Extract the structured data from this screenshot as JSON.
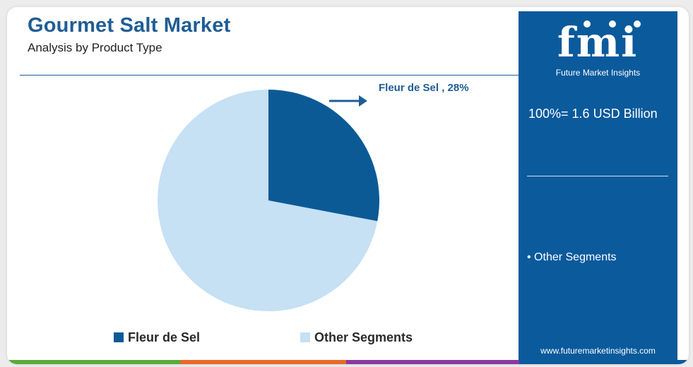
{
  "header": {
    "title": "Gourmet Salt Market",
    "subtitle": "Analysis by Product Type"
  },
  "chart_data": {
    "type": "pie",
    "title": "Gourmet Salt Market",
    "subtitle": "Analysis by Product Type",
    "categories": [
      "Fleur de Sel",
      "Other Segments"
    ],
    "values": [
      28,
      72
    ],
    "unit": "%",
    "callout": "Fleur de Sel , 28%",
    "colors": [
      "#0b5a96",
      "#c6e0f4"
    ],
    "legend_placement": "bottom"
  },
  "legend": {
    "items": [
      {
        "label": "Fleur de Sel",
        "color": "#0b5a96"
      },
      {
        "label": "Other Segments",
        "color": "#c6e0f4"
      }
    ]
  },
  "side_panel": {
    "logo_text": "fmi",
    "logo_subtitle": "Future Market Insights",
    "total_label": "100%= 1.6 USD Billion",
    "segment_label": "• Other Segments",
    "website": "www.futuremarketinsights.com",
    "background_color": "#0a5a9c"
  },
  "footer": {
    "stripe_colors": [
      "#5aaa3c",
      "#e86a2a",
      "#8a3aa0",
      "#0a5a9c"
    ]
  }
}
